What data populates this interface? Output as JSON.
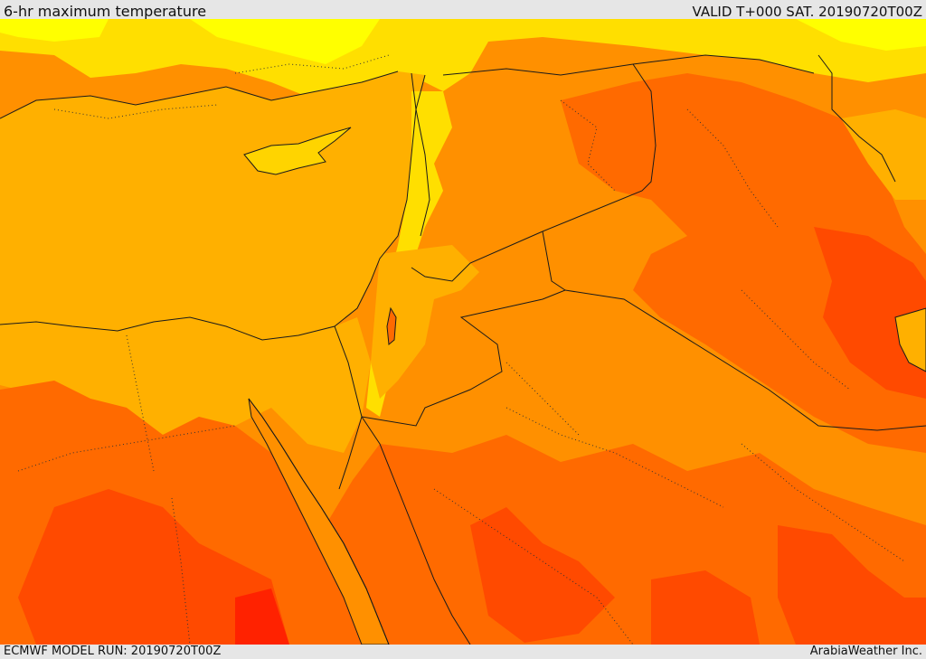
{
  "header": {
    "title": "6-hr maximum temperature",
    "valid": "VALID T+000 SAT. 20190720T00Z"
  },
  "footer": {
    "model_run": "ECMWF MODEL RUN: 20190720T00Z",
    "credit": "ArabiaWeather Inc."
  },
  "colors": {
    "cool_yellow": "#ffff00",
    "light_yellow": "#ffdf00",
    "amber": "#ffb000",
    "orange": "#ff9000",
    "dark_orange": "#ff6a00",
    "red_orange": "#ff4a00",
    "red": "#ff2200",
    "border": "#1a1a1a"
  }
}
